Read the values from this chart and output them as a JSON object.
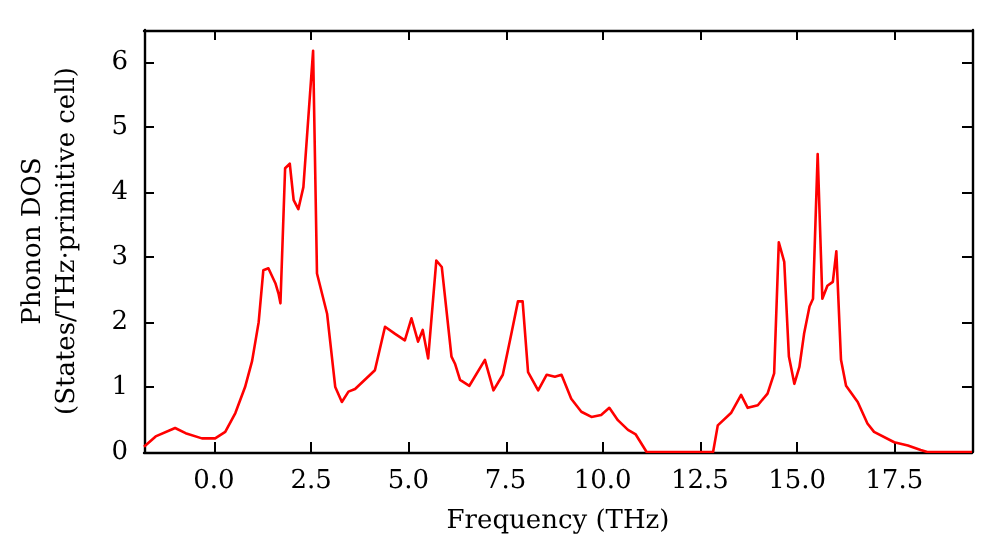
{
  "chart_data": {
    "type": "line",
    "xlabel": "Frequency (THz)",
    "ylabel": "Phonon DOS\n(States/THz·primitive cell)",
    "xlim": [
      -1.8,
      19.5
    ],
    "ylim": [
      0,
      6.5
    ],
    "xticks": [
      {
        "value": 0,
        "label": "0.0"
      },
      {
        "value": 2.5,
        "label": "2.5"
      },
      {
        "value": 5,
        "label": "5.0"
      },
      {
        "value": 7.5,
        "label": "7.5"
      },
      {
        "value": 10,
        "label": "10.0"
      },
      {
        "value": 12.5,
        "label": "12.5"
      },
      {
        "value": 15,
        "label": "15.0"
      },
      {
        "value": 17.5,
        "label": "17.5"
      }
    ],
    "yticks": [
      0,
      1,
      2,
      3,
      4,
      5,
      6
    ],
    "marker": "none",
    "line_style": "solid",
    "series": [
      {
        "color": "#ff0000",
        "x": [
          -1.8,
          -1.5,
          -1.0,
          -0.73,
          -0.31,
          0.03,
          0.29,
          0.55,
          0.8,
          0.98,
          1.15,
          1.27,
          1.4,
          1.58,
          1.66,
          1.71,
          1.83,
          1.95,
          2.05,
          2.17,
          2.3,
          2.55,
          2.65,
          2.91,
          3.12,
          3.29,
          3.46,
          3.63,
          4.14,
          4.4,
          4.66,
          4.91,
          5.08,
          5.25,
          5.37,
          5.51,
          5.72,
          5.86,
          6.11,
          6.2,
          6.33,
          6.57,
          6.97,
          7.19,
          7.43,
          7.65,
          7.82,
          7.94,
          8.08,
          8.34,
          8.56,
          8.77,
          8.94,
          9.19,
          9.45,
          9.71,
          9.96,
          10.17,
          10.39,
          10.65,
          10.85,
          11.13,
          12.84,
          12.96,
          13.3,
          13.56,
          13.73,
          13.99,
          14.24,
          14.41,
          14.53,
          14.67,
          14.79,
          14.93,
          15.06,
          15.18,
          15.32,
          15.41,
          15.53,
          15.65,
          15.78,
          15.92,
          16.01,
          16.13,
          16.26,
          16.56,
          16.81,
          16.98,
          17.5,
          17.85,
          18.18,
          18.35,
          19.5
        ],
        "values": [
          0.08,
          0.24,
          0.37,
          0.29,
          0.21,
          0.21,
          0.31,
          0.6,
          1.0,
          1.4,
          2.0,
          2.8,
          2.83,
          2.6,
          2.44,
          2.29,
          4.37,
          4.44,
          3.88,
          3.74,
          4.08,
          6.18,
          2.75,
          2.13,
          1.0,
          0.77,
          0.93,
          0.97,
          1.26,
          1.93,
          1.82,
          1.72,
          2.06,
          1.7,
          1.88,
          1.44,
          2.95,
          2.85,
          1.47,
          1.36,
          1.11,
          1.02,
          1.42,
          0.95,
          1.19,
          1.82,
          2.32,
          2.32,
          1.23,
          0.95,
          1.19,
          1.16,
          1.19,
          0.82,
          0.62,
          0.54,
          0.57,
          0.68,
          0.49,
          0.34,
          0.27,
          0,
          0,
          0.41,
          0.6,
          0.88,
          0.68,
          0.72,
          0.9,
          1.21,
          3.23,
          2.93,
          1.47,
          1.05,
          1.31,
          1.82,
          2.24,
          2.36,
          4.59,
          2.36,
          2.56,
          2.62,
          3.09,
          1.42,
          1.02,
          0.77,
          0.44,
          0.31,
          0.15,
          0.1,
          0.03,
          0,
          0
        ]
      }
    ]
  }
}
